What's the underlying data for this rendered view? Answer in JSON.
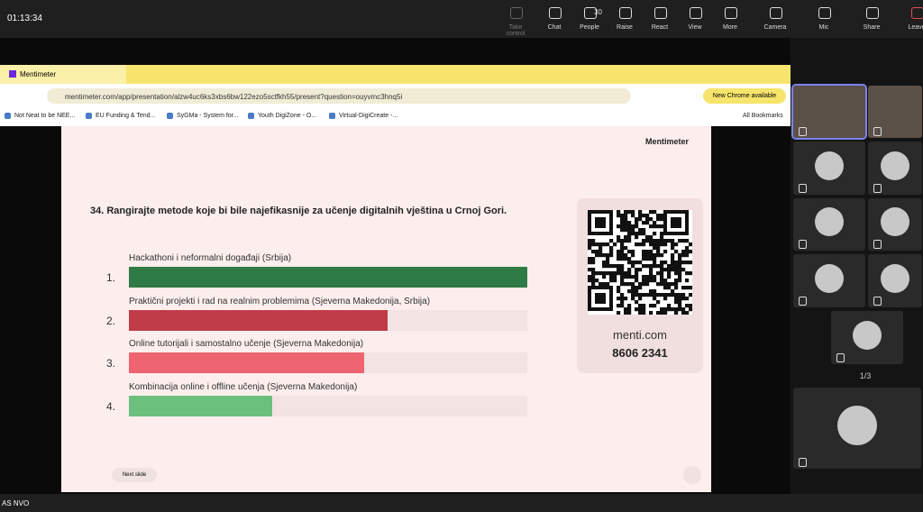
{
  "meeting_toolbar": {
    "time": "01:13:34",
    "buttons": [
      {
        "label": "Take control"
      },
      {
        "label": "Chat"
      },
      {
        "label": "People",
        "count": 30
      },
      {
        "label": "Raise"
      },
      {
        "label": "React"
      },
      {
        "label": "View"
      },
      {
        "label": "More"
      },
      {
        "label": "Camera"
      },
      {
        "label": "Mic"
      },
      {
        "label": "Share"
      },
      {
        "label": "Leave"
      }
    ]
  },
  "browser": {
    "tab_title": "Mentimeter",
    "url": "mentimeter.com/app/presentation/alzw4uc6ks3xbs6bw122ezo5sctfkh55/present?question=ouyvmc3hnq5i",
    "update_button": "New Chrome available",
    "bookmarks": [
      "Not Neat to be NEE...",
      "EU Funding & Tend...",
      "SyGMa - System for...",
      "Youth DigiZone - O...",
      "Virtual-DigiCreate -..."
    ],
    "all_bookmarks": "All Bookmarks"
  },
  "slide": {
    "brand": "Mentimeter",
    "question": "34. Rangirajte metode koje bi bile najefikasnije za učenje digitalnih vještina u Crnoj Gori.",
    "ranking": [
      {
        "rank": "1.",
        "label": "Hackathoni i neformalni događaji (Srbija)",
        "score": 100,
        "color": "#2f7b45"
      },
      {
        "rank": "2.",
        "label": "Praktični projekti i rad na realnim problemima (Sjeverna Makedonija, Srbija)",
        "score": 65,
        "color": "#bf3c48"
      },
      {
        "rank": "3.",
        "label": "Online tutorijali i samostalno učenje (Sjeverna Makedonija)",
        "score": 59,
        "color": "#ee6470"
      },
      {
        "rank": "4.",
        "label": "Kombinacija online i offline učenja (Sjeverna Makedonija)",
        "score": 36,
        "color": "#6bc07e"
      }
    ],
    "join_site": "menti.com",
    "join_code": "8606 2341",
    "next_button": "Next slide"
  },
  "participants": {
    "page": "1/3"
  },
  "taskbar": {
    "item": "AS NVO"
  }
}
